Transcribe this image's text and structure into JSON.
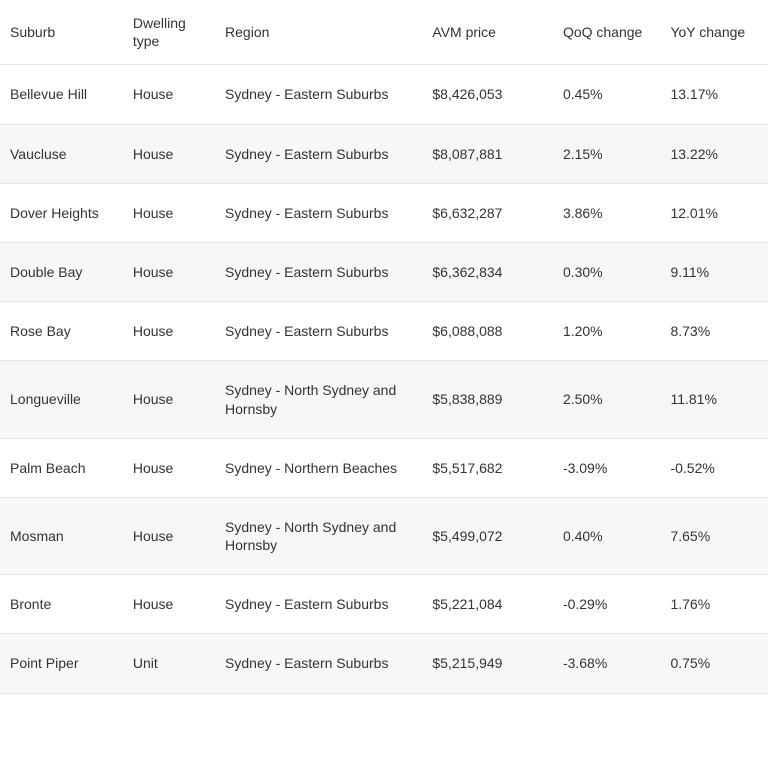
{
  "table": {
    "type": "table",
    "background_color": "#ffffff",
    "alt_row_color": "#f7f7f7",
    "border_color": "#e5e5e5",
    "text_color": "#333333",
    "font_size_pt": 10.5,
    "columns": [
      {
        "key": "suburb",
        "label": "Suburb",
        "width_pct": 16,
        "align": "left"
      },
      {
        "key": "dwelling",
        "label": "Dwelling type",
        "width_pct": 12,
        "align": "left"
      },
      {
        "key": "region",
        "label": "Region",
        "width_pct": 27,
        "align": "left"
      },
      {
        "key": "avm",
        "label": "AVM price",
        "width_pct": 17,
        "align": "left"
      },
      {
        "key": "qoq",
        "label": "QoQ change",
        "width_pct": 14,
        "align": "left"
      },
      {
        "key": "yoy",
        "label": "YoY change",
        "width_pct": 14,
        "align": "left"
      }
    ],
    "rows": [
      {
        "suburb": "Bellevue Hill",
        "dwelling": "House",
        "region": "Sydney - Eastern Suburbs",
        "avm": "$8,426,053",
        "qoq": "0.45%",
        "yoy": "13.17%"
      },
      {
        "suburb": "Vaucluse",
        "dwelling": "House",
        "region": "Sydney - Eastern Suburbs",
        "avm": "$8,087,881",
        "qoq": "2.15%",
        "yoy": "13.22%"
      },
      {
        "suburb": "Dover Heights",
        "dwelling": "House",
        "region": "Sydney - Eastern Suburbs",
        "avm": "$6,632,287",
        "qoq": "3.86%",
        "yoy": "12.01%"
      },
      {
        "suburb": "Double Bay",
        "dwelling": "House",
        "region": "Sydney - Eastern Suburbs",
        "avm": "$6,362,834",
        "qoq": "0.30%",
        "yoy": "9.11%"
      },
      {
        "suburb": "Rose Bay",
        "dwelling": "House",
        "region": "Sydney - Eastern Suburbs",
        "avm": "$6,088,088",
        "qoq": "1.20%",
        "yoy": "8.73%"
      },
      {
        "suburb": "Longueville",
        "dwelling": "House",
        "region": "Sydney - North Sydney and Hornsby",
        "avm": "$5,838,889",
        "qoq": "2.50%",
        "yoy": "11.81%"
      },
      {
        "suburb": "Palm Beach",
        "dwelling": "House",
        "region": "Sydney - Northern Beaches",
        "avm": "$5,517,682",
        "qoq": "-3.09%",
        "yoy": "-0.52%"
      },
      {
        "suburb": "Mosman",
        "dwelling": "House",
        "region": "Sydney - North Sydney and Hornsby",
        "avm": "$5,499,072",
        "qoq": "0.40%",
        "yoy": "7.65%"
      },
      {
        "suburb": "Bronte",
        "dwelling": "House",
        "region": "Sydney - Eastern Suburbs",
        "avm": "$5,221,084",
        "qoq": "-0.29%",
        "yoy": "1.76%"
      },
      {
        "suburb": "Point Piper",
        "dwelling": "Unit",
        "region": "Sydney - Eastern Suburbs",
        "avm": "$5,215,949",
        "qoq": "-3.68%",
        "yoy": "0.75%"
      }
    ]
  }
}
